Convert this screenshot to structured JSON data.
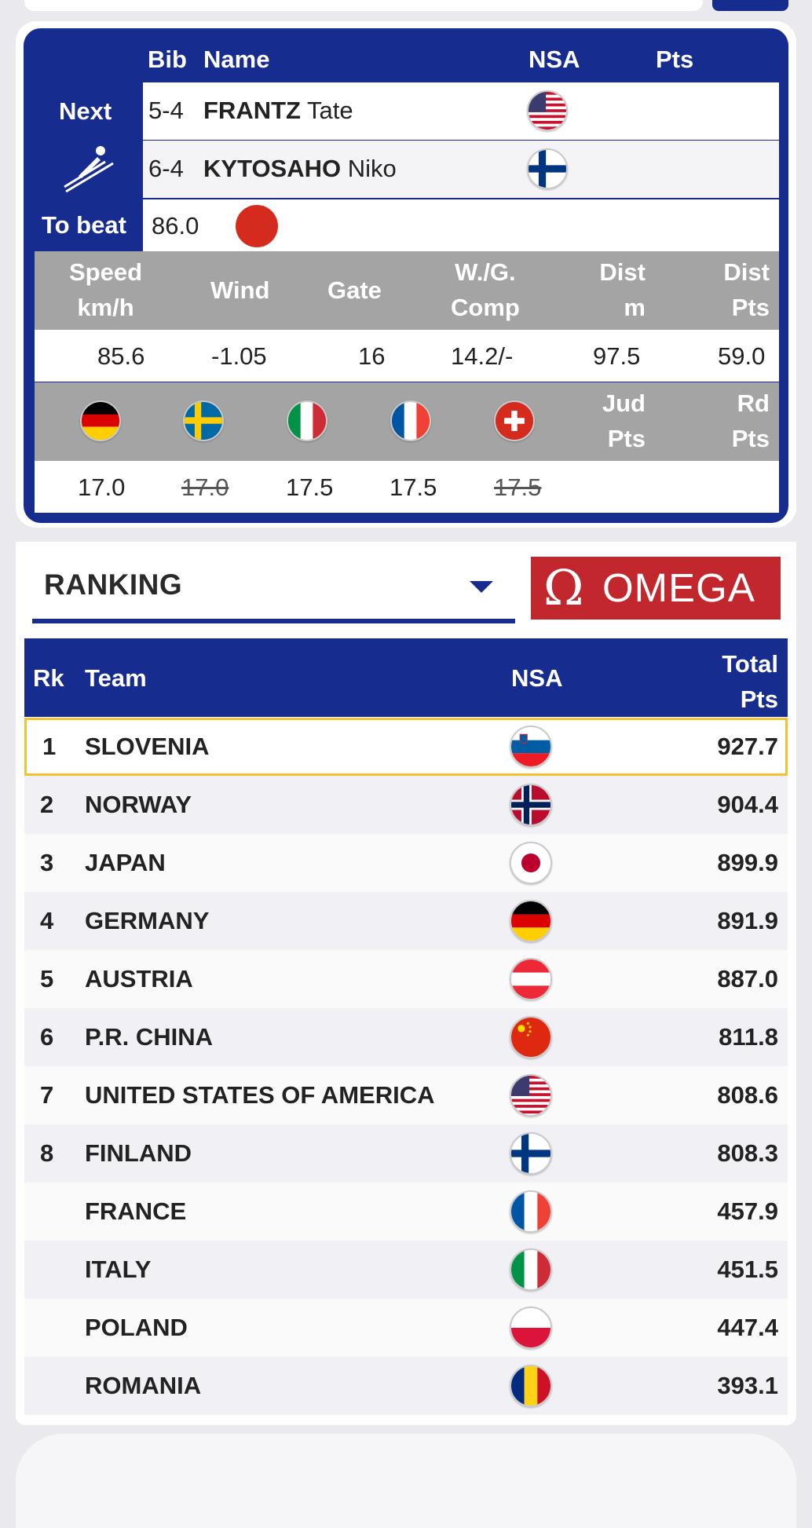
{
  "next_panel": {
    "headers": {
      "bib": "Bib",
      "name": "Name",
      "nsa": "NSA",
      "pts": "Pts"
    },
    "next_label": "Next",
    "to_beat_label": "To beat",
    "to_beat_value": "86.0",
    "jumpers": [
      {
        "bib": "5-4",
        "last": "FRANTZ",
        "first": "Tate",
        "flag": "usa"
      },
      {
        "bib": "6-4",
        "last": "KYTOSAHO",
        "first": "Niko",
        "flag": "finland"
      }
    ]
  },
  "stats": {
    "headers": {
      "speed": [
        "Speed",
        "km/h"
      ],
      "wind": "Wind",
      "gate": "Gate",
      "wg": [
        "W./G.",
        "Comp"
      ],
      "dist": [
        "Dist",
        "m"
      ],
      "dist_pts": [
        "Dist",
        "Pts"
      ]
    },
    "values": {
      "speed": "85.6",
      "wind": "-1.05",
      "gate": "16",
      "wg": "14.2/-",
      "dist": "97.5",
      "dist_pts": "59.0"
    },
    "judges_headers": {
      "jud": [
        "Jud",
        "Pts"
      ],
      "rd": [
        "Rd",
        "Pts"
      ]
    },
    "judges": [
      {
        "flag": "germany",
        "score": "17.0",
        "struck": false
      },
      {
        "flag": "sweden",
        "score": "17.0",
        "struck": true
      },
      {
        "flag": "italy",
        "score": "17.5",
        "struck": false
      },
      {
        "flag": "france",
        "score": "17.5",
        "struck": false
      },
      {
        "flag": "switzerland",
        "score": "17.5",
        "struck": true
      }
    ]
  },
  "ranking": {
    "dropdown_label": "RANKING",
    "sponsor": "OMEGA",
    "headers": {
      "rk": "Rk",
      "team": "Team",
      "nsa": "NSA",
      "total": [
        "Total",
        "Pts"
      ]
    },
    "rows": [
      {
        "rk": "1",
        "team": "SLOVENIA",
        "flag": "slovenia",
        "pts": "927.7"
      },
      {
        "rk": "2",
        "team": "NORWAY",
        "flag": "norway",
        "pts": "904.4"
      },
      {
        "rk": "3",
        "team": "JAPAN",
        "flag": "japan",
        "pts": "899.9"
      },
      {
        "rk": "4",
        "team": "GERMANY",
        "flag": "germany",
        "pts": "891.9"
      },
      {
        "rk": "5",
        "team": "AUSTRIA",
        "flag": "austria",
        "pts": "887.0"
      },
      {
        "rk": "6",
        "team": "P.R. CHINA",
        "flag": "china",
        "pts": "811.8"
      },
      {
        "rk": "7",
        "team": "UNITED STATES OF AMERICA",
        "flag": "usa",
        "pts": "808.6"
      },
      {
        "rk": "8",
        "team": "FINLAND",
        "flag": "finland",
        "pts": "808.3"
      },
      {
        "rk": "",
        "team": "FRANCE",
        "flag": "france",
        "pts": "457.9"
      },
      {
        "rk": "",
        "team": "ITALY",
        "flag": "italy",
        "pts": "451.5"
      },
      {
        "rk": "",
        "team": "POLAND",
        "flag": "poland",
        "pts": "447.4"
      },
      {
        "rk": "",
        "team": "ROMANIA",
        "flag": "romania",
        "pts": "393.1"
      }
    ]
  },
  "colors": {
    "navy": "#172c8f",
    "grey_header": "#a4a4a4",
    "omega_red": "#c1272d",
    "highlight": "#f1c232",
    "to_beat_dot": "#d52b1e"
  }
}
